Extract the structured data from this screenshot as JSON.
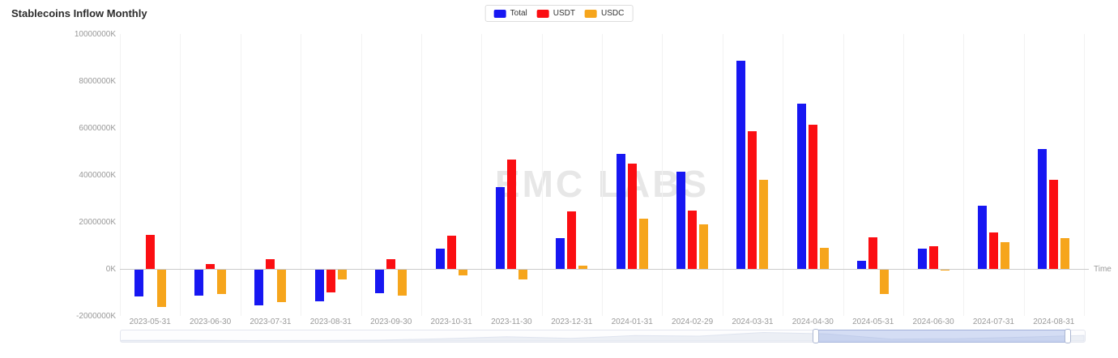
{
  "title": "Stablecoins Inflow Monthly",
  "watermark": "EMC LABS",
  "colors": {
    "total": "#1717f2",
    "usdt": "#fb0e12",
    "usdc": "#f6a51c",
    "axis_label": "#999999",
    "gridline": "#f2f2f2",
    "zero_axis": "#cccccc",
    "watermark": "#e7e7e7",
    "datazoom_window": "rgba(145,167,228,0.38)"
  },
  "legend": {
    "items": [
      {
        "label": "Total",
        "color": "#1717f2"
      },
      {
        "label": "USDT",
        "color": "#fb0e12"
      },
      {
        "label": "USDC",
        "color": "#f6a51c"
      }
    ]
  },
  "axis": {
    "time_label": "Time"
  },
  "chart_data": {
    "type": "bar",
    "title": "Stablecoins Inflow Monthly",
    "xlabel": "Time",
    "ylabel": "",
    "unit": "K",
    "ylim": [
      -2000000,
      10000000
    ],
    "ytick_step": 2000000,
    "ytick_labels": [
      "10000000K",
      "8000000K",
      "6000000K",
      "4000000K",
      "2000000K",
      "0K",
      "-2000000K"
    ],
    "grid": "vertical-only",
    "legend_position": "top-center",
    "categories": [
      "2023-05-31",
      "2023-06-30",
      "2023-07-31",
      "2023-08-31",
      "2023-09-30",
      "2023-10-31",
      "2023-11-30",
      "2023-12-31",
      "2024-01-31",
      "2024-02-29",
      "2024-03-31",
      "2024-04-30",
      "2024-05-31",
      "2024-06-30",
      "2024-07-31",
      "2024-08-31"
    ],
    "series": [
      {
        "name": "Total",
        "color": "#1717f2",
        "values": [
          -1150000,
          -1100000,
          -1500000,
          -1350000,
          -1000000,
          850000,
          3500000,
          1300000,
          4900000,
          4150000,
          8850000,
          7050000,
          350000,
          850000,
          2700000,
          5100000
        ]
      },
      {
        "name": "USDT",
        "color": "#fb0e12",
        "values": [
          1450000,
          200000,
          430000,
          -950000,
          400000,
          1400000,
          4650000,
          2450000,
          4500000,
          2500000,
          5850000,
          6150000,
          1350000,
          950000,
          1550000,
          3800000
        ]
      },
      {
        "name": "USDC",
        "color": "#f6a51c",
        "values": [
          -1600000,
          -1050000,
          -1380000,
          -400000,
          -1100000,
          -230000,
          -400000,
          150000,
          2150000,
          1900000,
          3800000,
          900000,
          -1050000,
          -50000,
          1150000,
          1300000
        ]
      }
    ]
  },
  "datazoom": {
    "window_start": 0.72,
    "window_end": 0.981
  }
}
